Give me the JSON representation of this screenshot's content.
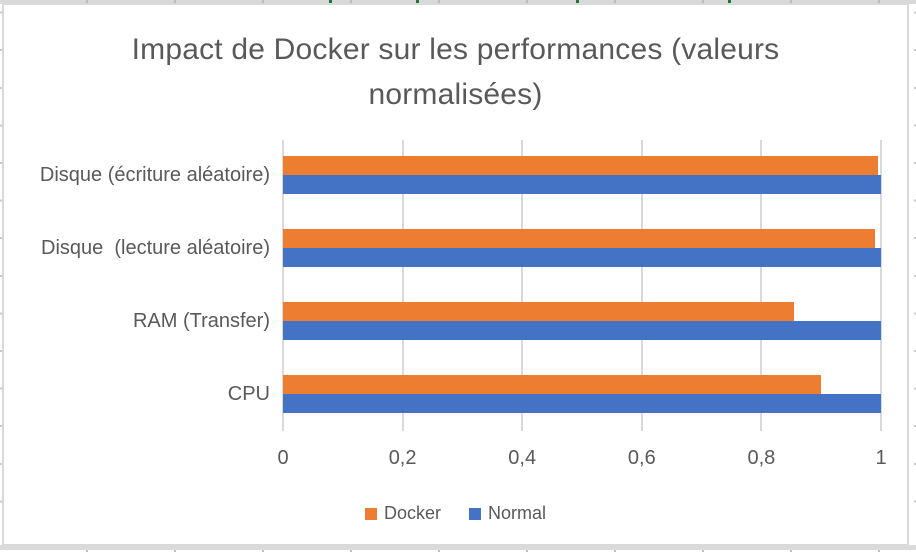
{
  "chart_data": {
    "type": "bar",
    "orientation": "horizontal",
    "title": "Impact de Docker sur les performances (valeurs normalisées)",
    "categories_top_to_bottom": [
      "Disque (écriture aléatoire)",
      "Disque  (lecture aléatoire)",
      "RAM (Transfer)",
      "CPU"
    ],
    "series": [
      {
        "name": "Docker",
        "color": "#ED7D31",
        "values_top_to_bottom": [
          0.995,
          0.99,
          0.855,
          0.9
        ]
      },
      {
        "name": "Normal",
        "color": "#4472C4",
        "values_top_to_bottom": [
          1.0,
          1.0,
          1.0,
          1.0
        ]
      }
    ],
    "xlim": [
      0,
      1
    ],
    "x_ticks": [
      {
        "value": 0,
        "label": "0"
      },
      {
        "value": 0.2,
        "label": "0,2"
      },
      {
        "value": 0.4,
        "label": "0,4"
      },
      {
        "value": 0.6,
        "label": "0,6"
      },
      {
        "value": 0.8,
        "label": "0,8"
      },
      {
        "value": 1,
        "label": "1"
      }
    ],
    "grid": true,
    "legend_position": "bottom",
    "legend": [
      "Docker",
      "Normal"
    ]
  },
  "colors": {
    "docker_orange": "#ED7D31",
    "normal_blue": "#4472C4",
    "text_gray": "#595959",
    "gridline_gray": "#D9D9D9",
    "sheet_highlight_green": "#217346"
  }
}
